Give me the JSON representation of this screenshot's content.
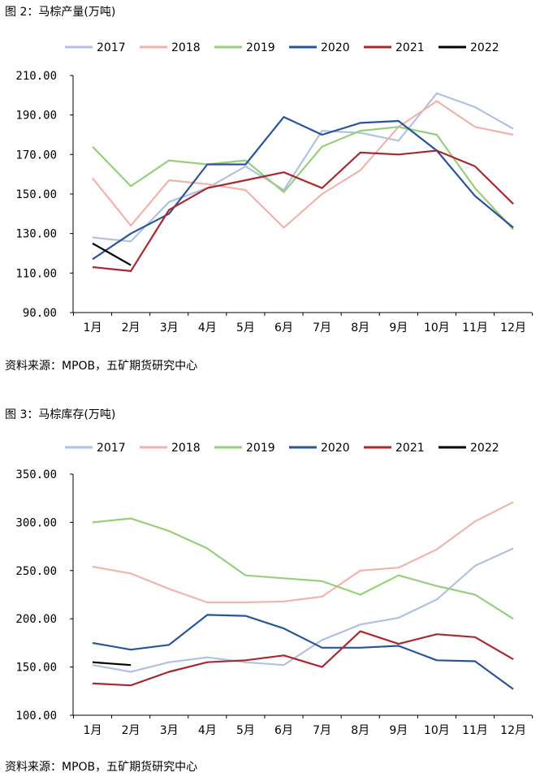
{
  "figures": [
    {
      "title": "图 2：马棕产量(万吨)",
      "source": "资料来源：MPOB，五矿期货研究中心"
    },
    {
      "title": "图 3：马棕库存(万吨)",
      "source": "资料来源：MPOB，五矿期货研究中心"
    }
  ],
  "chart_data": [
    {
      "type": "line",
      "title": "图 2：马棕产量(万吨)",
      "categories": [
        "1月",
        "2月",
        "3月",
        "4月",
        "5月",
        "6月",
        "7月",
        "8月",
        "9月",
        "10月",
        "11月",
        "12月"
      ],
      "ylim": [
        90,
        210
      ],
      "yticks": [
        "210.00",
        "190.00",
        "170.00",
        "150.00",
        "130.00",
        "110.00",
        "90.00"
      ],
      "legend_position": "top",
      "grid": false,
      "series": [
        {
          "name": "2017",
          "color": "#b4c0df",
          "values": [
            128,
            126,
            146,
            153,
            164,
            152,
            182,
            181,
            177,
            201,
            194,
            183
          ]
        },
        {
          "name": "2018",
          "color": "#f0b3ad",
          "values": [
            158,
            134,
            157,
            155,
            152,
            133,
            150,
            162,
            184,
            197,
            184,
            180
          ]
        },
        {
          "name": "2019",
          "color": "#98ce7c",
          "values": [
            174,
            154,
            167,
            165,
            167,
            151,
            174,
            182,
            184,
            180,
            153,
            132
          ]
        },
        {
          "name": "2020",
          "color": "#2a5497",
          "values": [
            117,
            130,
            140,
            165,
            165,
            189,
            180,
            186,
            187,
            172,
            149,
            133
          ]
        },
        {
          "name": "2021",
          "color": "#a52a32",
          "values": [
            113,
            111,
            142,
            153,
            157,
            161,
            153,
            171,
            170,
            172,
            164,
            145
          ]
        },
        {
          "name": "2022",
          "color": "#000000",
          "values": [
            125,
            114,
            null,
            null,
            null,
            null,
            null,
            null,
            null,
            null,
            null,
            null
          ]
        }
      ]
    },
    {
      "type": "line",
      "title": "图 3：马棕库存(万吨)",
      "categories": [
        "1月",
        "2月",
        "3月",
        "4月",
        "5月",
        "6月",
        "7月",
        "8月",
        "9月",
        "10月",
        "11月",
        "12月"
      ],
      "ylim": [
        100,
        350
      ],
      "yticks": [
        "350.00",
        "300.00",
        "250.00",
        "200.00",
        "150.00",
        "100.00"
      ],
      "legend_position": "top",
      "grid": false,
      "series": [
        {
          "name": "2017",
          "color": "#b4c0df",
          "values": [
            152,
            145,
            155,
            160,
            155,
            152,
            178,
            194,
            201,
            220,
            255,
            273
          ]
        },
        {
          "name": "2018",
          "color": "#f0b3ad",
          "values": [
            254,
            247,
            231,
            217,
            217,
            218,
            223,
            250,
            253,
            272,
            301,
            321
          ]
        },
        {
          "name": "2019",
          "color": "#98ce7c",
          "values": [
            300,
            304,
            291,
            273,
            245,
            242,
            239,
            225,
            245,
            234,
            225,
            200
          ]
        },
        {
          "name": "2020",
          "color": "#2a5497",
          "values": [
            175,
            168,
            173,
            204,
            203,
            190,
            170,
            170,
            172,
            157,
            156,
            127
          ]
        },
        {
          "name": "2021",
          "color": "#a52a32",
          "values": [
            133,
            131,
            145,
            155,
            157,
            162,
            150,
            187,
            174,
            184,
            181,
            158
          ]
        },
        {
          "name": "2022",
          "color": "#000000",
          "values": [
            155,
            152,
            null,
            null,
            null,
            null,
            null,
            null,
            null,
            null,
            null,
            null
          ]
        }
      ]
    }
  ]
}
